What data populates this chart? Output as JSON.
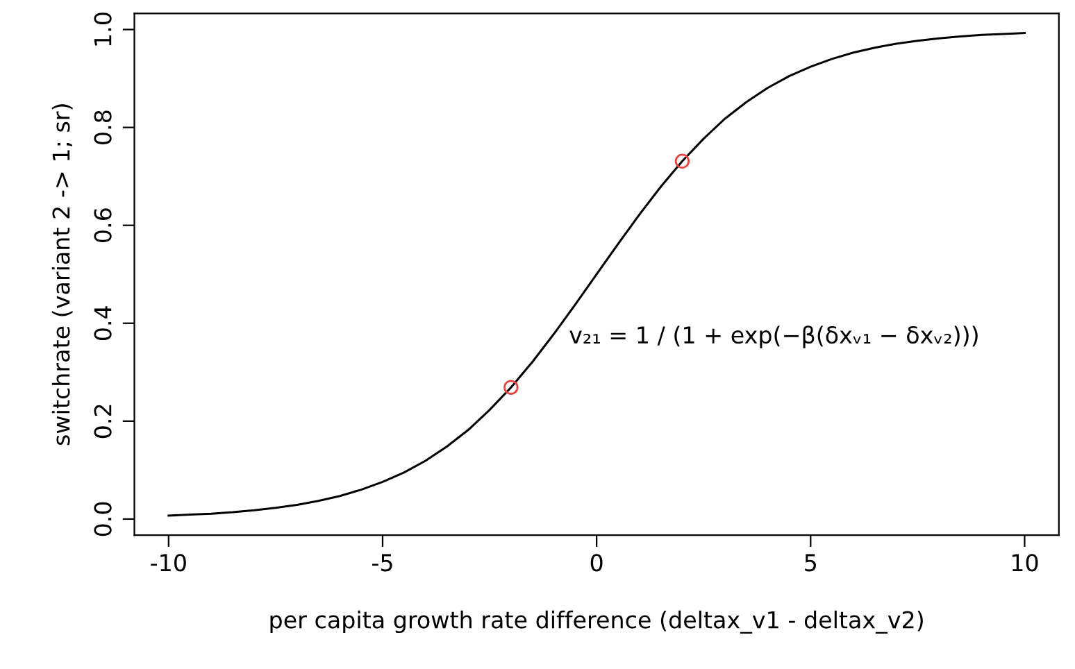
{
  "chart_data": {
    "type": "line",
    "xlabel": "per capita growth rate difference (deltax_v1 - deltax_v2)",
    "ylabel": "switchrate (variant 2 -> 1; sr)",
    "xlim": [
      -10.8,
      10.8
    ],
    "ylim": [
      -0.033,
      1.033
    ],
    "xticks": [
      -10,
      -5,
      0,
      5,
      10
    ],
    "yticks": [
      {
        "value": 0,
        "label": "0.0"
      },
      0.2,
      0.4,
      0.6,
      0.8,
      {
        "value": 1,
        "label": "1.0"
      }
    ],
    "grid": false,
    "series": [
      {
        "color": "#000000",
        "marker": "none",
        "x": [
          -10,
          -9.5,
          -9,
          -8.5,
          -8,
          -7.5,
          -7,
          -6.5,
          -6,
          -5.5,
          -5,
          -4.5,
          -4,
          -3.5,
          -3,
          -2.5,
          -2,
          -1.5,
          -1,
          -0.5,
          0,
          0.5,
          1,
          1.5,
          2,
          2.5,
          3,
          3.5,
          4,
          4.5,
          5,
          5.5,
          6,
          6.5,
          7,
          7.5,
          8,
          8.5,
          9,
          9.5,
          10
        ],
        "values": [
          0.007,
          0.009,
          0.011,
          0.014,
          0.018,
          0.023,
          0.029,
          0.037,
          0.047,
          0.06,
          0.076,
          0.095,
          0.119,
          0.148,
          0.182,
          0.223,
          0.269,
          0.321,
          0.378,
          0.438,
          0.5,
          0.562,
          0.622,
          0.679,
          0.731,
          0.777,
          0.818,
          0.852,
          0.881,
          0.905,
          0.924,
          0.94,
          0.953,
          0.963,
          0.971,
          0.977,
          0.982,
          0.986,
          0.989,
          0.991,
          0.993
        ]
      },
      {
        "type": "scatter",
        "color": "#e8433f",
        "marker": "circle",
        "x": [
          -2,
          2
        ],
        "values": [
          0.269,
          0.731
        ]
      }
    ],
    "annotations": [
      "v₂₁ = 1 / (1 + exp(−β(δxᵥ₁ − δxᵥ₂)))"
    ]
  }
}
